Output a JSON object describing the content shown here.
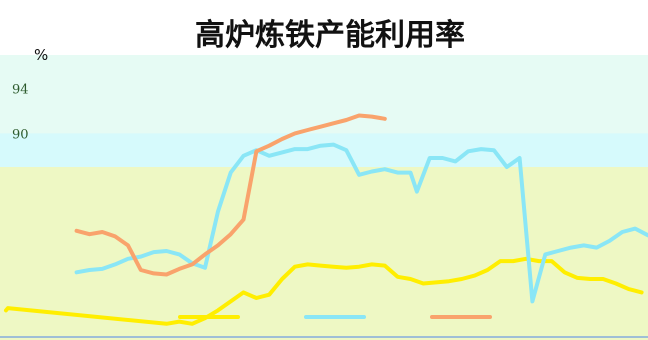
{
  "chart_data": {
    "type": "line",
    "title": "高炉炼铁产能利用率",
    "y_unit": "%",
    "y_tick_labels": [
      "94",
      "90"
    ],
    "x_range": [
      0,
      100
    ],
    "ylim": [
      72,
      97
    ],
    "grid": false,
    "legend": "bottom",
    "background": {
      "top_color": "#e6fbf4",
      "bottom_color": "#eef8c4",
      "top_band_from_y": 87,
      "highlight_band": [
        87,
        90
      ],
      "highlight_color": "#d6fafc"
    },
    "series": [
      {
        "color": "#ffee00",
        "x": [
          0,
          0.3,
          25,
          27,
          29,
          31,
          33,
          35,
          37,
          39,
          41,
          43,
          45,
          47,
          49,
          51,
          53,
          55,
          57,
          59,
          61,
          63,
          65,
          67,
          69,
          71,
          73,
          75,
          77,
          79,
          81,
          83,
          85,
          87,
          89,
          91,
          93,
          95,
          97,
          99
        ],
        "y": [
          74.2,
          74.4,
          73.0,
          73.2,
          73.0,
          73.5,
          74.2,
          75.0,
          75.8,
          75.3,
          75.6,
          77.0,
          78.1,
          78.3,
          78.2,
          78.1,
          78.0,
          78.1,
          78.3,
          78.2,
          77.2,
          77.0,
          76.6,
          76.7,
          76.8,
          77.0,
          77.3,
          77.8,
          78.6,
          78.6,
          78.8,
          78.6,
          78.6,
          77.6,
          77.1,
          77.0,
          77.0,
          76.6,
          76.1,
          75.8
        ]
      },
      {
        "color": "#8ae6f6",
        "x": [
          11,
          13,
          15,
          17,
          19,
          21,
          23,
          25,
          27,
          29,
          31,
          33,
          35,
          37,
          39,
          41,
          43,
          45,
          47,
          49,
          51,
          53,
          55,
          57,
          59,
          61,
          63,
          64,
          66,
          68,
          70,
          72,
          74,
          76,
          78,
          80,
          82,
          84,
          86,
          88,
          90,
          92,
          94,
          96,
          98,
          100
        ],
        "y": [
          77.6,
          77.8,
          77.9,
          78.3,
          78.8,
          79.0,
          79.4,
          79.5,
          79.2,
          78.4,
          78.0,
          83.0,
          86.5,
          88.0,
          88.5,
          88.0,
          88.3,
          88.6,
          88.6,
          88.9,
          89.0,
          88.5,
          86.3,
          86.6,
          86.8,
          86.5,
          86.5,
          84.8,
          87.8,
          87.8,
          87.5,
          88.4,
          88.6,
          88.5,
          87.0,
          87.8,
          75.0,
          79.2,
          79.5,
          79.8,
          80.0,
          79.8,
          80.4,
          81.2,
          81.5,
          80.9
        ]
      },
      {
        "color": "#f9a36c",
        "x": [
          11,
          13,
          15,
          17,
          19,
          21,
          23,
          25,
          27,
          29,
          31,
          33,
          35,
          37,
          39,
          41,
          43,
          45,
          47,
          49,
          51,
          53,
          55,
          57,
          59
        ],
        "y": [
          81.3,
          81.0,
          81.2,
          80.8,
          80.0,
          77.8,
          77.5,
          77.4,
          77.9,
          78.3,
          79.2,
          80.0,
          81.0,
          82.3,
          88.4,
          88.9,
          89.5,
          90.0,
          90.3,
          90.6,
          90.9,
          91.2,
          91.6,
          91.5,
          91.3
        ]
      }
    ]
  }
}
